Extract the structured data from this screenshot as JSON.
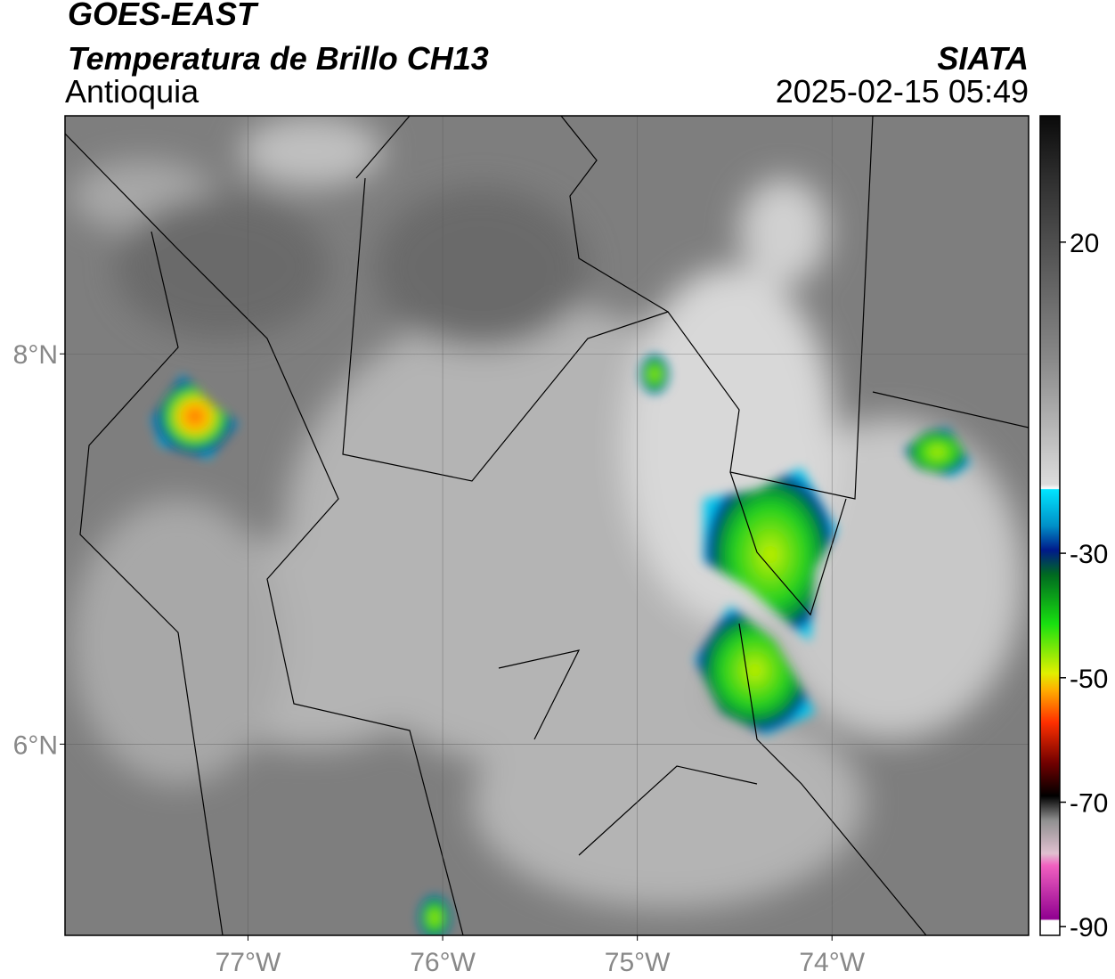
{
  "header": {
    "satellite": "GOES-EAST",
    "product": "Temperatura de Brillo CH13",
    "region": "Antioquia",
    "source": "SIATA",
    "datetime": "2025-02-15 05:49"
  },
  "map": {
    "xlim": [
      -77.94,
      -72.99
    ],
    "ylim": [
      5.02,
      9.22
    ],
    "xticks": [
      {
        "value": -77,
        "label": "77°W"
      },
      {
        "value": -76,
        "label": "76°W"
      },
      {
        "value": -75,
        "label": "75°W"
      },
      {
        "value": -74,
        "label": "74°W"
      }
    ],
    "yticks": [
      {
        "value": 6,
        "label": "6°N"
      },
      {
        "value": 8,
        "label": "8°N"
      }
    ],
    "grid": true
  },
  "colorbar": {
    "lim": [
      -91.4,
      40.3
    ],
    "ticks": [
      20,
      -30,
      -50,
      -70,
      -90
    ]
  }
}
